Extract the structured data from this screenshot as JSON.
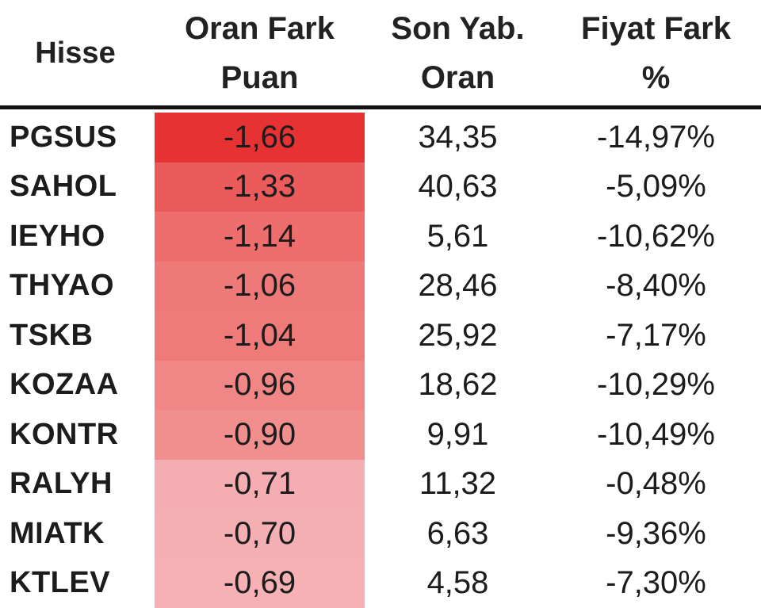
{
  "table": {
    "headers": {
      "stock": "Hisse",
      "diff_line1": "Oran Fark",
      "diff_line2": "Puan",
      "last_line1": "Son Yab.",
      "last_line2": "Oran",
      "price_line1": "Fiyat Fark",
      "price_line2": "%"
    },
    "rows": [
      {
        "stock": "PGSUS",
        "diff": "-1,66",
        "last": "34,35",
        "price": "-14,97%",
        "heat_color": "#e63232"
      },
      {
        "stock": "SAHOL",
        "diff": "-1,33",
        "last": "40,63",
        "price": "-5,09%",
        "heat_color": "#ec5b5b"
      },
      {
        "stock": "IEYHO",
        "diff": "-1,14",
        "last": "5,61",
        "price": "-10,62%",
        "heat_color": "#ee6e6e"
      },
      {
        "stock": "THYAO",
        "diff": "-1,06",
        "last": "28,46",
        "price": "-8,40%",
        "heat_color": "#ef7878"
      },
      {
        "stock": "TSKB",
        "diff": "-1,04",
        "last": "25,92",
        "price": "-7,17%",
        "heat_color": "#ef7a7a"
      },
      {
        "stock": "KOZAA",
        "diff": "-0,96",
        "last": "18,62",
        "price": "-10,29%",
        "heat_color": "#f08686"
      },
      {
        "stock": "KONTR",
        "diff": "-0,90",
        "last": "9,91",
        "price": "-10,49%",
        "heat_color": "#f18f8f"
      },
      {
        "stock": "RALYH",
        "diff": "-0,71",
        "last": "11,32",
        "price": "-0,48%",
        "heat_color": "#f4adb0"
      },
      {
        "stock": "MIATK",
        "diff": "-0,70",
        "last": "6,63",
        "price": "-9,36%",
        "heat_color": "#f4afb2"
      },
      {
        "stock": "KTLEV",
        "diff": "-0,69",
        "last": "4,58",
        "price": "-7,30%",
        "heat_color": "#f5b1b4"
      }
    ]
  }
}
